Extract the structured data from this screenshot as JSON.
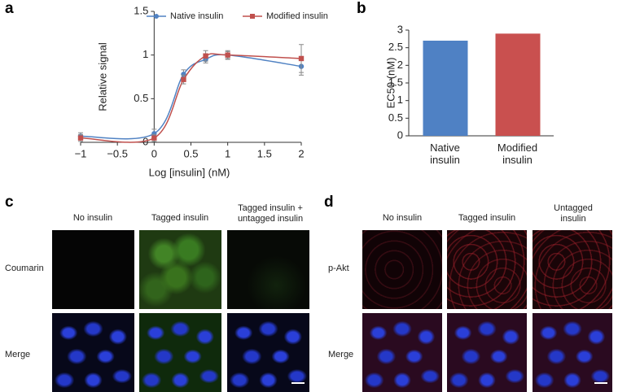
{
  "panel_labels": [
    "a",
    "b",
    "c",
    "d"
  ],
  "chart_data": [
    {
      "type": "line",
      "xlabel": "Log [insulin] (nM)",
      "ylabel": "Relative signal",
      "x": [
        -1,
        0,
        0.4,
        0.7,
        1,
        2
      ],
      "series": [
        {
          "name": "Native insulin",
          "color": "#5082c3",
          "values": [
            0.07,
            0.1,
            0.78,
            0.95,
            1.0,
            0.87
          ],
          "errors": [
            0.04,
            0.05,
            0.05,
            0.04,
            0.04,
            0.1
          ]
        },
        {
          "name": "Modified insulin",
          "color": "#c0504d",
          "values": [
            0.05,
            0.05,
            0.72,
            0.99,
            1.0,
            0.96
          ],
          "errors": [
            0.04,
            0.04,
            0.05,
            0.06,
            0.05,
            0.16
          ]
        }
      ],
      "xlim": [
        -1,
        2
      ],
      "xticks": [
        {
          "value": -1,
          "label": "−1"
        },
        {
          "value": -0.5,
          "label": "−0.5"
        },
        0,
        0.5,
        1,
        1.5,
        2
      ],
      "ylim": [
        0,
        1.5
      ],
      "yticks": [
        0,
        0.5,
        1,
        1.5
      ],
      "legend": "top"
    },
    {
      "type": "bar",
      "ylabel": "EC50 (nM)",
      "categories": [
        "Native insulin",
        "Modified insulin"
      ],
      "values": [
        2.7,
        2.9
      ],
      "colors": [
        "#4f81c4",
        "#c9504f"
      ],
      "ylim": [
        0,
        3
      ],
      "yticks": [
        0,
        0.5,
        1,
        1.5,
        2,
        2.5,
        3
      ]
    }
  ],
  "image_panels": [
    {
      "columns": [
        "No insulin",
        "Tagged insulin",
        "Tagged insulin + untagged insulin"
      ],
      "rows": [
        "Coumarin",
        "Merge"
      ]
    },
    {
      "columns": [
        "No insulin",
        "Tagged insulin",
        "Untagged insulin"
      ],
      "rows": [
        "p-Akt",
        "Merge"
      ]
    }
  ]
}
